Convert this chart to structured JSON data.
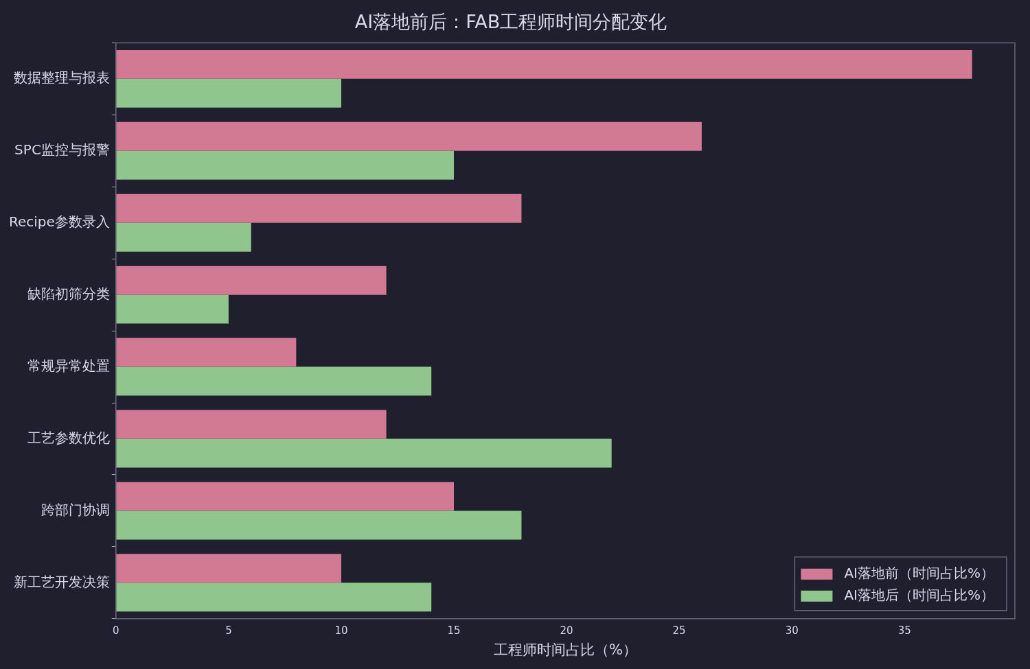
{
  "chart_data": {
    "type": "bar",
    "orientation": "horizontal",
    "title": "AI落地前后：FAB工程师时间分配变化",
    "xlabel": "工程师时间占比（%）",
    "categories": [
      "数据整理与报表",
      "SPC监控与报警",
      "Recipe参数录入",
      "缺陷初筛分类",
      "常规异常处置",
      "工艺参数优化",
      "跨部门协调",
      "新工艺开发决策"
    ],
    "series": [
      {
        "name": "AI落地前（时间占比%）",
        "color": "#d27a93",
        "values": [
          38,
          26,
          18,
          12,
          8,
          12,
          15,
          10
        ]
      },
      {
        "name": "AI落地后（时间占比%）",
        "color": "#90c68e",
        "values": [
          10,
          15,
          6,
          5,
          14,
          22,
          18,
          14
        ]
      }
    ],
    "xlim": [
      0,
      39.9
    ],
    "xticks": [
      0,
      5,
      10,
      15,
      20,
      25,
      30,
      35
    ],
    "grid": false,
    "legend": "bottom right"
  }
}
